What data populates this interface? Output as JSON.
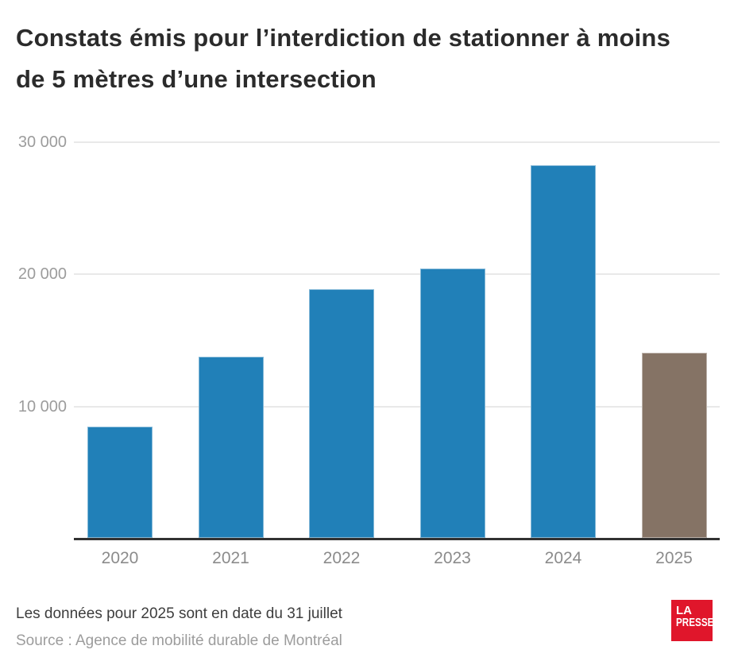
{
  "title": "Constats émis pour l’interdiction de stationner à moins de 5 mètres d’une intersection",
  "title_lines": [
    "Constats émis pour l’interdiction de stationner à moins",
    "de 5 mètres d’une intersection"
  ],
  "notes": {
    "line1": "Les données pour 2025 sont en date du 31 juillet",
    "line2": "Source : Agence de mobilité durable de Montréal"
  },
  "logo": {
    "line1": "LA",
    "line2": "PRESSE",
    "color": "#e0162b"
  },
  "colors": {
    "bar_blue": "#2180b8",
    "bar_taupe": "#857365",
    "axis": "#323232",
    "grid": "#e9e9e9",
    "tick_text": "#9c9c9c",
    "xtick_text": "#8b8b8b",
    "title_text": "#2b2b2b"
  },
  "chart_data": {
    "type": "bar",
    "title": "Constats émis pour l’interdiction de stationner à moins de 5 mètres d’une intersection",
    "categories": [
      "2020",
      "2021",
      "2022",
      "2023",
      "2024",
      "2025"
    ],
    "values": [
      8400,
      13700,
      18800,
      20400,
      28200,
      14000
    ],
    "bar_colors": [
      "#2180b8",
      "#2180b8",
      "#2180b8",
      "#2180b8",
      "#2180b8",
      "#857365"
    ],
    "xlabel": "",
    "ylabel": "",
    "ylim": [
      0,
      30000
    ],
    "yticks": [
      {
        "value": 10000,
        "label": "10 000"
      },
      {
        "value": 20000,
        "label": "20 000"
      },
      {
        "value": 30000,
        "label": "30 000"
      }
    ],
    "grid": true,
    "legend": false,
    "annotations": [
      "Les données pour 2025 sont en date du 31 juillet",
      "Source : Agence de mobilité durable de Montréal"
    ]
  }
}
